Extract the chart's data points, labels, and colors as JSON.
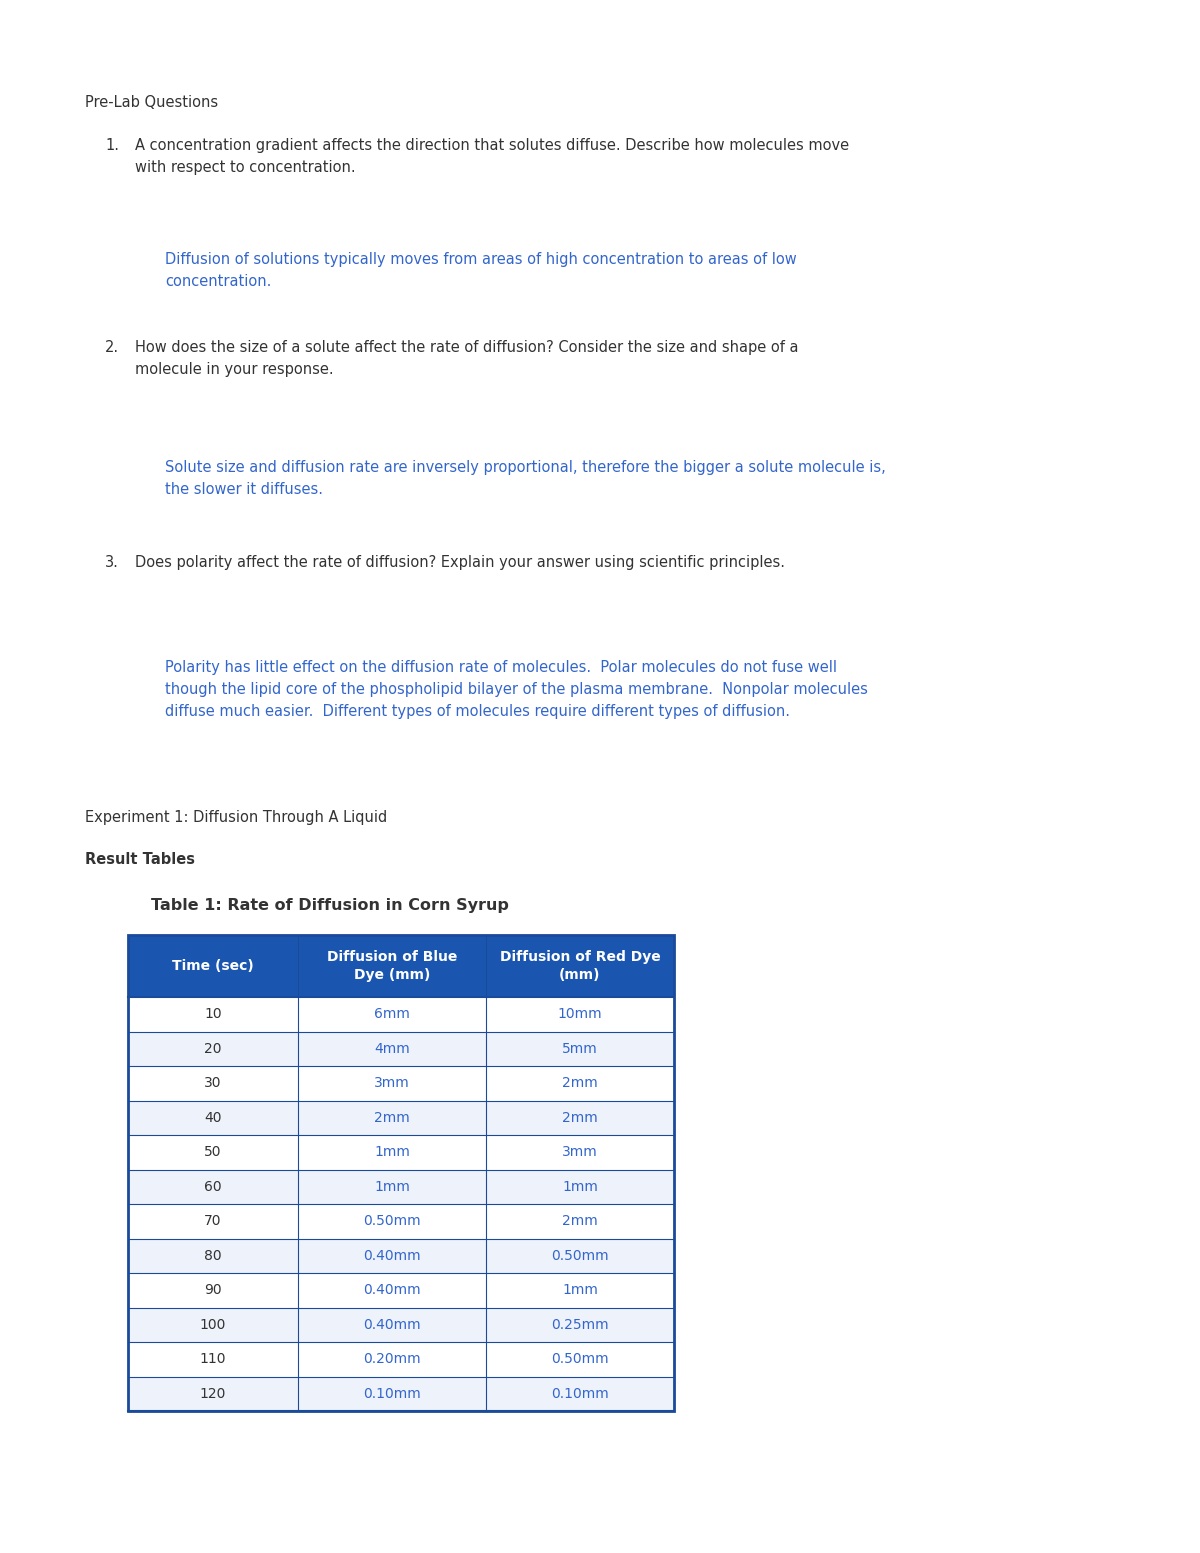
{
  "bg_color": "#ffffff",
  "text_color_black": "#333333",
  "text_color_blue": "#3366cc",
  "header_bg": "#1a56b0",
  "header_text": "#ffffff",
  "table_border": "#1a4a9a",
  "row_alt_bg": "#eef2fb",
  "row_bg": "#ffffff",
  "section_label": "Pre-Lab Questions",
  "q1_label": "1.",
  "q1_text": "A concentration gradient affects the direction that solutes diffuse. Describe how molecules move\nwith respect to concentration.",
  "q1_answer": "Diffusion of solutions typically moves from areas of high concentration to areas of low\nconcentration.",
  "q2_label": "2.",
  "q2_text": "How does the size of a solute affect the rate of diffusion? Consider the size and shape of a\nmolecule in your response.",
  "q2_answer": "Solute size and diffusion rate are inversely proportional, therefore the bigger a solute molecule is,\nthe slower it diffuses.",
  "q3_label": "3.",
  "q3_text": "Does polarity affect the rate of diffusion? Explain your answer using scientific principles.",
  "q3_answer": "Polarity has little effect on the diffusion rate of molecules.  Polar molecules do not fuse well\nthough the lipid core of the phospholipid bilayer of the plasma membrane.  Nonpolar molecules\ndiffuse much easier.  Different types of molecules require different types of diffusion.",
  "exp_label": "Experiment 1: Diffusion Through A Liquid",
  "result_label": "Result Tables",
  "table_title": "Table 1: Rate of Diffusion in Corn Syrup",
  "col_headers": [
    "Time (sec)",
    "Diffusion of Blue\nDye (mm)",
    "Diffusion of Red Dye\n(mm)"
  ],
  "table_data": [
    [
      "10",
      "6mm",
      "10mm"
    ],
    [
      "20",
      "4mm",
      "5mm"
    ],
    [
      "30",
      "3mm",
      "2mm"
    ],
    [
      "40",
      "2mm",
      "2mm"
    ],
    [
      "50",
      "1mm",
      "3mm"
    ],
    [
      "60",
      "1mm",
      "1mm"
    ],
    [
      "70",
      "0.50mm",
      "2mm"
    ],
    [
      "80",
      "0.40mm",
      "0.50mm"
    ],
    [
      "90",
      "0.40mm",
      "1mm"
    ],
    [
      "100",
      "0.40mm",
      "0.25mm"
    ],
    [
      "110",
      "0.20mm",
      "0.50mm"
    ],
    [
      "120",
      "0.10mm",
      "0.10mm"
    ]
  ]
}
